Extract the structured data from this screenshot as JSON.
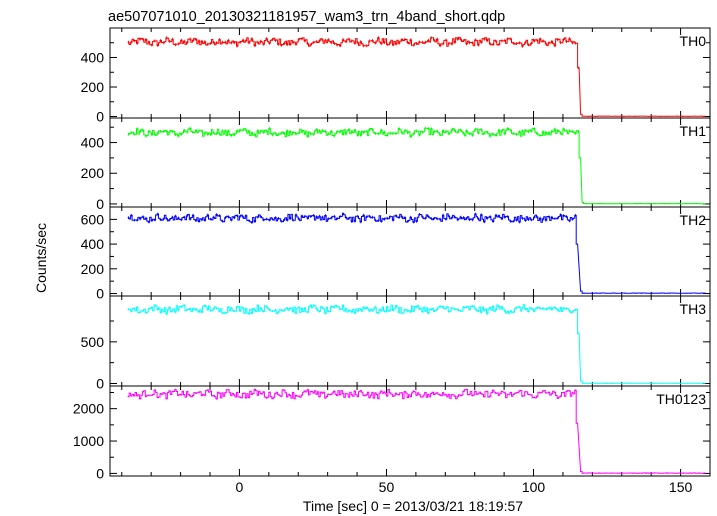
{
  "title": "ae507071010_20130321181957_wam3_trn_4band_short.qdp",
  "ylabel": "Counts/sec",
  "xlabel": "Time [sec] 0 = 2013/03/21 18:19:57",
  "chart_data": {
    "type": "line",
    "title": "ae507071010_20130321181957_wam3_trn_4band_short.qdp",
    "xlabel": "Time [sec] 0 = 2013/03/21 18:19:57",
    "ylabel": "Counts/sec",
    "xlim": [
      -44,
      160
    ],
    "x_ticks": [
      0,
      50,
      100,
      150
    ],
    "x_tick_labels": [
      "0",
      "50",
      "100",
      "150"
    ],
    "grid": false,
    "drop_time": 116,
    "panels": [
      {
        "name": "TH0",
        "color": "#ff0000",
        "ylim": [
          -10,
          600
        ],
        "yticks": [
          0,
          200,
          400
        ],
        "yticklabels": [
          "0",
          "200",
          "400"
        ],
        "before_level": 505,
        "after_level": 2,
        "transition": [
          {
            "x": 115.0,
            "y": 330
          },
          {
            "x": 116.0,
            "y": 15
          }
        ],
        "start_x": -38
      },
      {
        "name": "TH1",
        "color": "#00ff00",
        "ylim": [
          -20,
          560
        ],
        "yticks": [
          0,
          200,
          400
        ],
        "yticklabels": [
          "0",
          "200",
          "400"
        ],
        "before_level": 465,
        "after_level": 2,
        "transition": [
          {
            "x": 115.5,
            "y": 300
          },
          {
            "x": 116.5,
            "y": 10
          }
        ],
        "start_x": -38
      },
      {
        "name": "TH2",
        "color": "#0000ff",
        "ylim": [
          -20,
          700
        ],
        "yticks": [
          0,
          200,
          400,
          600
        ],
        "yticklabels": [
          "0",
          "200",
          "400",
          "600"
        ],
        "before_level": 610,
        "after_level": 3,
        "transition": [
          {
            "x": 114.5,
            "y": 400
          },
          {
            "x": 116.0,
            "y": 20
          }
        ],
        "start_x": -38
      },
      {
        "name": "TH3",
        "color": "#00ffff",
        "ylim": [
          -30,
          1050
        ],
        "yticks": [
          0,
          500
        ],
        "yticklabels": [
          "0",
          "500"
        ],
        "before_level": 890,
        "after_level": 3,
        "transition": [
          {
            "x": 115.0,
            "y": 600
          },
          {
            "x": 116.0,
            "y": 30
          }
        ],
        "start_x": -38
      },
      {
        "name": "TH0123",
        "color": "#ff00ff",
        "ylim": [
          -80,
          2700
        ],
        "yticks": [
          0,
          1000,
          2000
        ],
        "yticklabels": [
          "0",
          "1000",
          "2000"
        ],
        "before_level": 2450,
        "after_level": 10,
        "transition": [
          {
            "x": 114.5,
            "y": 1550
          },
          {
            "x": 116.0,
            "y": 60
          }
        ],
        "start_x": -38
      }
    ]
  }
}
